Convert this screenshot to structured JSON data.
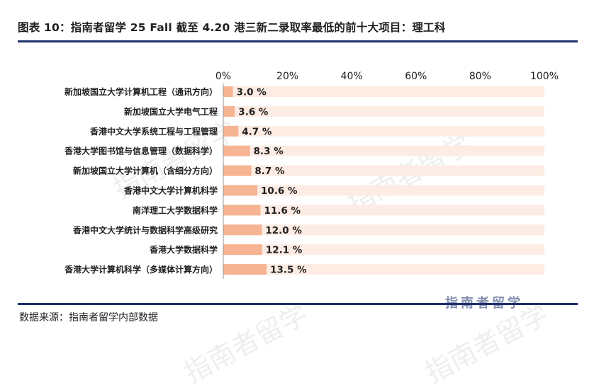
{
  "header": {
    "title": "图表 10：指南者留学 25 Fall 截至 4.20 港三新二录取率最低的前十大项目：理工科"
  },
  "footer": {
    "source": "数据来源：指南者留学内部数据"
  },
  "watermark": {
    "text": "指南者留学"
  },
  "colors": {
    "bar": "#f6b493",
    "track": "#fdece3",
    "rule": "#1f2f6b",
    "text": "#1f1f1f"
  },
  "chart_data": {
    "type": "bar",
    "orientation": "horizontal",
    "xlim": [
      0,
      100
    ],
    "x_ticks": [
      "0%",
      "20%",
      "40%",
      "60%",
      "80%",
      "100%"
    ],
    "x_tick_values": [
      0,
      20,
      40,
      60,
      80,
      100
    ],
    "categories": [
      "新加坡国立大学计算机工程（通讯方向）",
      "新加坡国立大学电气工程",
      "香港中文大学系统工程与工程管理",
      "香港大学图书馆与信息管理（数据科学）",
      "新加坡国立大学计算机（含细分方向）",
      "香港中文大学计算机科学",
      "南洋理工大学数据科学",
      "香港中文大学统计与数据科学高级研究",
      "香港大学数据科学",
      "香港大学计算机科学（多媒体计算方向）"
    ],
    "values": [
      3.0,
      3.6,
      4.7,
      8.3,
      8.7,
      10.6,
      11.6,
      12.0,
      12.1,
      13.5
    ],
    "data_labels": [
      "3.0 %",
      "3.6 %",
      "4.7 %",
      "8.3 %",
      "8.7 %",
      "10.6 %",
      "11.6 %",
      "12.0 %",
      "12.1 %",
      "13.5 %"
    ]
  }
}
